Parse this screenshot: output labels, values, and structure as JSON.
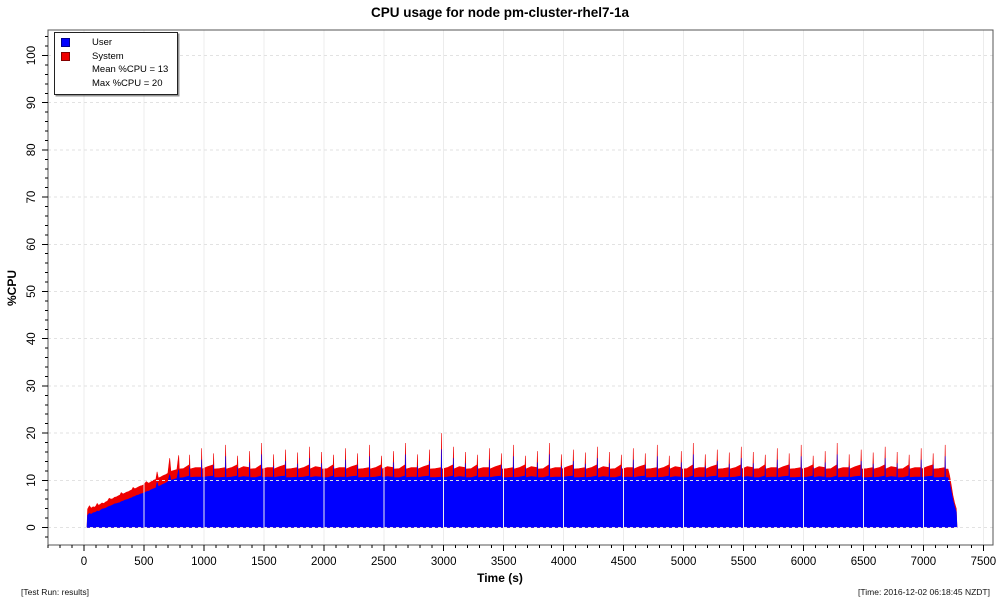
{
  "title": "CPU usage for node pm-cluster-rhel7-1a",
  "footer": {
    "left": "[Test Run: results]",
    "right": "[Time: 2016-12-02 06:18:45 NZDT]"
  },
  "chart_data": {
    "type": "area",
    "stacked": true,
    "title": "CPU usage for node pm-cluster-rhel7-1a",
    "xlabel": "Time (s)",
    "ylabel": "%CPU",
    "xlim": [
      -300,
      7580
    ],
    "ylim": [
      -3.7,
      105.4
    ],
    "x_major_ticks": [
      0,
      500,
      1000,
      1500,
      2000,
      2500,
      3000,
      3500,
      4000,
      4500,
      5000,
      5500,
      6000,
      6500,
      7000,
      7500
    ],
    "x_minor_step": 100,
    "y_major_ticks": [
      0,
      10,
      20,
      30,
      40,
      50,
      60,
      70,
      80,
      90,
      100
    ],
    "y_minor_step": 2,
    "grid": true,
    "colors": {
      "user": "#0000ff",
      "system": "#ee0000",
      "grid_h": "#e2e2e2",
      "grid_v": "#ececec",
      "box": "#555555"
    },
    "legend": {
      "items": [
        {
          "label": "User",
          "color": "#0000ff"
        },
        {
          "label": "System",
          "color": "#ee0000"
        }
      ],
      "stats": [
        {
          "label": "Mean %CPU = 13"
        },
        {
          "label": "Max %CPU = 20"
        }
      ]
    },
    "mean_pct_cpu": 13,
    "max_pct_cpu": 20,
    "points_format": [
      "time_s",
      "user_pct",
      "total_pct"
    ],
    "points": [
      [
        25,
        0,
        0
      ],
      [
        30,
        2.6,
        3.9
      ],
      [
        45,
        3.0,
        4.6
      ],
      [
        60,
        2.8,
        4.1
      ],
      [
        75,
        3.1,
        4.4
      ],
      [
        90,
        3.2,
        4.3
      ],
      [
        100,
        3.3,
        4.6
      ],
      [
        110,
        3.5,
        5.1
      ],
      [
        120,
        3.4,
        4.7
      ],
      [
        135,
        3.6,
        4.9
      ],
      [
        150,
        3.9,
        5.2
      ],
      [
        165,
        4.0,
        5.1
      ],
      [
        180,
        4.1,
        5.4
      ],
      [
        195,
        4.3,
        5.6
      ],
      [
        210,
        4.5,
        6.2
      ],
      [
        225,
        4.6,
        6.0
      ],
      [
        240,
        4.8,
        6.1
      ],
      [
        255,
        5.0,
        6.4
      ],
      [
        270,
        5.1,
        6.5
      ],
      [
        285,
        5.2,
        6.7
      ],
      [
        300,
        5.3,
        6.9
      ],
      [
        310,
        5.5,
        7.4
      ],
      [
        325,
        5.6,
        7.1
      ],
      [
        340,
        5.8,
        7.3
      ],
      [
        355,
        5.9,
        7.5
      ],
      [
        370,
        6.0,
        7.6
      ],
      [
        385,
        6.2,
        7.8
      ],
      [
        400,
        6.3,
        8.0
      ],
      [
        410,
        6.5,
        8.5
      ],
      [
        425,
        6.6,
        8.2
      ],
      [
        440,
        6.8,
        8.4
      ],
      [
        455,
        6.9,
        8.6
      ],
      [
        470,
        7.1,
        8.8
      ],
      [
        485,
        7.2,
        8.9
      ],
      [
        500,
        7.3,
        9.1
      ],
      [
        520,
        7.6,
        9.7
      ],
      [
        540,
        7.7,
        9.4
      ],
      [
        560,
        8.0,
        9.7
      ],
      [
        580,
        8.2,
        10.0
      ],
      [
        600,
        8.4,
        10.2
      ],
      [
        610,
        9.6,
        11.8
      ],
      [
        620,
        8.7,
        10.5
      ],
      [
        640,
        8.9,
        10.7
      ],
      [
        660,
        9.2,
        11.0
      ],
      [
        680,
        9.4,
        11.2
      ],
      [
        700,
        9.7,
        11.5
      ],
      [
        715,
        11.2,
        14.7
      ],
      [
        725,
        10.0,
        11.9
      ],
      [
        750,
        10.2,
        12.1
      ],
      [
        775,
        10.4,
        12.3
      ],
      [
        790,
        12.3,
        15.3
      ],
      [
        795,
        10.5,
        12.4
      ],
      [
        830,
        10.6,
        12.5
      ],
      [
        878,
        10.9,
        13.3
      ],
      [
        881,
        13.0,
        15.4
      ],
      [
        884,
        10.6,
        12.4
      ],
      [
        930,
        10.7,
        12.7
      ],
      [
        978,
        10.7,
        12.7
      ],
      [
        981,
        14.4,
        16.8
      ],
      [
        984,
        10.6,
        12.4
      ],
      [
        1030,
        10.8,
        12.9
      ],
      [
        1078,
        10.9,
        13.3
      ],
      [
        1081,
        13.3,
        15.7
      ],
      [
        1084,
        10.6,
        12.4
      ],
      [
        1130,
        10.6,
        12.5
      ],
      [
        1178,
        10.7,
        12.7
      ],
      [
        1181,
        15.1,
        17.5
      ],
      [
        1184,
        10.6,
        12.4
      ],
      [
        1230,
        10.7,
        12.7
      ],
      [
        1278,
        10.9,
        13.3
      ],
      [
        1281,
        12.8,
        15.2
      ],
      [
        1284,
        10.6,
        12.4
      ],
      [
        1330,
        10.8,
        12.9
      ],
      [
        1378,
        10.7,
        12.7
      ],
      [
        1381,
        13.8,
        16.2
      ],
      [
        1384,
        10.6,
        12.4
      ],
      [
        1430,
        10.6,
        12.5
      ],
      [
        1478,
        10.9,
        13.3
      ],
      [
        1481,
        15.5,
        17.9
      ],
      [
        1484,
        10.6,
        12.4
      ],
      [
        1530,
        10.7,
        12.7
      ],
      [
        1578,
        10.7,
        12.7
      ],
      [
        1581,
        13.1,
        15.5
      ],
      [
        1584,
        10.6,
        12.4
      ],
      [
        1630,
        10.8,
        12.9
      ],
      [
        1678,
        10.9,
        13.3
      ],
      [
        1681,
        14.1,
        16.5
      ],
      [
        1684,
        10.6,
        12.4
      ],
      [
        1730,
        10.6,
        12.5
      ],
      [
        1778,
        10.7,
        12.7
      ],
      [
        1781,
        13.5,
        15.9
      ],
      [
        1784,
        10.6,
        12.4
      ],
      [
        1830,
        10.7,
        12.7
      ],
      [
        1878,
        10.9,
        13.3
      ],
      [
        1881,
        14.7,
        17.1
      ],
      [
        1884,
        10.6,
        12.4
      ],
      [
        1930,
        10.8,
        12.9
      ],
      [
        1978,
        10.7,
        12.7
      ],
      [
        1981,
        13.6,
        16.0
      ],
      [
        1984,
        10.6,
        12.4
      ],
      [
        2030,
        10.6,
        12.5
      ],
      [
        2078,
        10.9,
        13.3
      ],
      [
        2081,
        13.0,
        15.4
      ],
      [
        2084,
        10.6,
        12.4
      ],
      [
        2130,
        10.7,
        12.7
      ],
      [
        2178,
        10.7,
        12.7
      ],
      [
        2181,
        14.4,
        16.8
      ],
      [
        2184,
        10.6,
        12.4
      ],
      [
        2230,
        10.8,
        12.9
      ],
      [
        2278,
        10.9,
        13.3
      ],
      [
        2281,
        13.3,
        15.7
      ],
      [
        2284,
        10.6,
        12.4
      ],
      [
        2330,
        10.6,
        12.5
      ],
      [
        2378,
        10.7,
        12.7
      ],
      [
        2381,
        15.1,
        17.5
      ],
      [
        2384,
        10.6,
        12.4
      ],
      [
        2430,
        10.7,
        12.7
      ],
      [
        2478,
        10.9,
        13.3
      ],
      [
        2481,
        12.8,
        15.2
      ],
      [
        2484,
        10.6,
        12.4
      ],
      [
        2530,
        10.8,
        12.9
      ],
      [
        2578,
        10.7,
        12.7
      ],
      [
        2581,
        13.8,
        16.2
      ],
      [
        2584,
        10.6,
        12.4
      ],
      [
        2630,
        10.6,
        12.5
      ],
      [
        2678,
        10.9,
        13.3
      ],
      [
        2681,
        15.5,
        17.9
      ],
      [
        2684,
        10.6,
        12.4
      ],
      [
        2730,
        10.7,
        12.7
      ],
      [
        2778,
        10.7,
        12.7
      ],
      [
        2781,
        13.1,
        15.5
      ],
      [
        2784,
        10.6,
        12.4
      ],
      [
        2830,
        10.8,
        12.9
      ],
      [
        2878,
        10.9,
        13.3
      ],
      [
        2881,
        14.1,
        16.5
      ],
      [
        2884,
        10.6,
        12.4
      ],
      [
        2930,
        10.6,
        12.5
      ],
      [
        2978,
        10.7,
        12.7
      ],
      [
        2981,
        16.6,
        20.0
      ],
      [
        2984,
        10.6,
        12.4
      ],
      [
        3030,
        10.7,
        12.7
      ],
      [
        3078,
        10.9,
        13.3
      ],
      [
        3081,
        14.7,
        17.1
      ],
      [
        3084,
        10.6,
        12.4
      ],
      [
        3130,
        10.8,
        12.9
      ],
      [
        3178,
        10.7,
        12.7
      ],
      [
        3181,
        13.6,
        16.0
      ],
      [
        3184,
        10.6,
        12.4
      ],
      [
        3230,
        10.6,
        12.5
      ],
      [
        3278,
        10.9,
        13.3
      ],
      [
        3281,
        13.0,
        15.4
      ],
      [
        3284,
        10.6,
        12.4
      ],
      [
        3330,
        10.7,
        12.7
      ],
      [
        3378,
        10.7,
        12.7
      ],
      [
        3381,
        14.4,
        16.8
      ],
      [
        3384,
        10.6,
        12.4
      ],
      [
        3430,
        10.8,
        12.9
      ],
      [
        3478,
        10.9,
        13.3
      ],
      [
        3481,
        13.3,
        15.7
      ],
      [
        3484,
        10.6,
        12.4
      ],
      [
        3530,
        10.6,
        12.5
      ],
      [
        3578,
        10.7,
        12.7
      ],
      [
        3581,
        15.1,
        17.5
      ],
      [
        3584,
        10.6,
        12.4
      ],
      [
        3630,
        10.7,
        12.7
      ],
      [
        3678,
        10.9,
        13.3
      ],
      [
        3681,
        12.8,
        15.2
      ],
      [
        3684,
        10.6,
        12.4
      ],
      [
        3730,
        10.8,
        12.9
      ],
      [
        3778,
        10.7,
        12.7
      ],
      [
        3781,
        13.8,
        16.2
      ],
      [
        3784,
        10.6,
        12.4
      ],
      [
        3830,
        10.6,
        12.5
      ],
      [
        3878,
        10.9,
        13.3
      ],
      [
        3881,
        15.5,
        17.9
      ],
      [
        3884,
        10.6,
        12.4
      ],
      [
        3930,
        10.7,
        12.7
      ],
      [
        3978,
        10.7,
        12.7
      ],
      [
        3981,
        13.1,
        15.5
      ],
      [
        3984,
        10.6,
        12.4
      ],
      [
        4030,
        10.8,
        12.9
      ],
      [
        4078,
        10.9,
        13.3
      ],
      [
        4081,
        14.1,
        16.5
      ],
      [
        4084,
        10.6,
        12.4
      ],
      [
        4130,
        10.6,
        12.5
      ],
      [
        4178,
        10.7,
        12.7
      ],
      [
        4181,
        13.5,
        15.9
      ],
      [
        4184,
        10.6,
        12.4
      ],
      [
        4230,
        10.7,
        12.7
      ],
      [
        4278,
        10.9,
        13.3
      ],
      [
        4281,
        14.7,
        17.1
      ],
      [
        4284,
        10.6,
        12.4
      ],
      [
        4330,
        10.8,
        12.9
      ],
      [
        4378,
        10.7,
        12.7
      ],
      [
        4381,
        13.6,
        16.0
      ],
      [
        4384,
        10.6,
        12.4
      ],
      [
        4430,
        10.6,
        12.5
      ],
      [
        4478,
        10.9,
        13.3
      ],
      [
        4481,
        13.0,
        15.4
      ],
      [
        4484,
        10.6,
        12.4
      ],
      [
        4530,
        10.7,
        12.7
      ],
      [
        4578,
        10.7,
        12.7
      ],
      [
        4581,
        14.4,
        16.8
      ],
      [
        4584,
        10.6,
        12.4
      ],
      [
        4630,
        10.8,
        12.9
      ],
      [
        4678,
        10.9,
        13.3
      ],
      [
        4681,
        13.3,
        15.7
      ],
      [
        4684,
        10.6,
        12.4
      ],
      [
        4730,
        10.6,
        12.5
      ],
      [
        4778,
        10.7,
        12.7
      ],
      [
        4781,
        15.1,
        17.5
      ],
      [
        4784,
        10.6,
        12.4
      ],
      [
        4830,
        10.7,
        12.7
      ],
      [
        4878,
        10.9,
        13.3
      ],
      [
        4881,
        12.8,
        15.2
      ],
      [
        4884,
        10.6,
        12.4
      ],
      [
        4930,
        10.8,
        12.9
      ],
      [
        4978,
        10.7,
        12.7
      ],
      [
        4981,
        13.8,
        16.2
      ],
      [
        4984,
        10.6,
        12.4
      ],
      [
        5030,
        10.6,
        12.5
      ],
      [
        5078,
        10.9,
        13.3
      ],
      [
        5081,
        15.5,
        17.9
      ],
      [
        5084,
        10.6,
        12.4
      ],
      [
        5130,
        10.7,
        12.7
      ],
      [
        5178,
        10.7,
        12.7
      ],
      [
        5181,
        13.1,
        15.5
      ],
      [
        5184,
        10.6,
        12.4
      ],
      [
        5230,
        10.8,
        12.9
      ],
      [
        5278,
        10.9,
        13.3
      ],
      [
        5281,
        14.1,
        16.5
      ],
      [
        5284,
        10.6,
        12.4
      ],
      [
        5330,
        10.6,
        12.5
      ],
      [
        5378,
        10.7,
        12.7
      ],
      [
        5381,
        13.5,
        15.9
      ],
      [
        5384,
        10.6,
        12.4
      ],
      [
        5430,
        10.7,
        12.7
      ],
      [
        5478,
        10.9,
        13.3
      ],
      [
        5481,
        14.7,
        17.1
      ],
      [
        5484,
        10.6,
        12.4
      ],
      [
        5530,
        10.8,
        12.9
      ],
      [
        5578,
        10.7,
        12.7
      ],
      [
        5581,
        13.6,
        16.0
      ],
      [
        5584,
        10.6,
        12.4
      ],
      [
        5630,
        10.6,
        12.5
      ],
      [
        5678,
        10.9,
        13.3
      ],
      [
        5681,
        13.0,
        15.4
      ],
      [
        5684,
        10.6,
        12.4
      ],
      [
        5730,
        10.7,
        12.7
      ],
      [
        5778,
        10.7,
        12.7
      ],
      [
        5781,
        14.4,
        16.8
      ],
      [
        5784,
        10.6,
        12.4
      ],
      [
        5830,
        10.8,
        12.9
      ],
      [
        5878,
        10.9,
        13.3
      ],
      [
        5881,
        13.3,
        15.7
      ],
      [
        5884,
        10.6,
        12.4
      ],
      [
        5930,
        10.6,
        12.5
      ],
      [
        5978,
        10.7,
        12.7
      ],
      [
        5981,
        15.1,
        17.5
      ],
      [
        5984,
        10.6,
        12.4
      ],
      [
        6030,
        10.7,
        12.7
      ],
      [
        6078,
        10.9,
        13.3
      ],
      [
        6081,
        12.8,
        15.2
      ],
      [
        6084,
        10.6,
        12.4
      ],
      [
        6130,
        10.8,
        12.9
      ],
      [
        6178,
        10.7,
        12.7
      ],
      [
        6181,
        13.8,
        16.2
      ],
      [
        6184,
        10.6,
        12.4
      ],
      [
        6230,
        10.6,
        12.5
      ],
      [
        6278,
        10.9,
        13.3
      ],
      [
        6281,
        15.5,
        17.9
      ],
      [
        6284,
        10.6,
        12.4
      ],
      [
        6330,
        10.7,
        12.7
      ],
      [
        6378,
        10.7,
        12.7
      ],
      [
        6381,
        13.1,
        15.5
      ],
      [
        6384,
        10.6,
        12.4
      ],
      [
        6430,
        10.8,
        12.9
      ],
      [
        6478,
        10.9,
        13.3
      ],
      [
        6481,
        14.1,
        16.5
      ],
      [
        6484,
        10.6,
        12.4
      ],
      [
        6530,
        10.6,
        12.5
      ],
      [
        6578,
        10.7,
        12.7
      ],
      [
        6581,
        13.5,
        15.9
      ],
      [
        6584,
        10.6,
        12.4
      ],
      [
        6630,
        10.7,
        12.7
      ],
      [
        6678,
        10.9,
        13.3
      ],
      [
        6681,
        14.7,
        17.1
      ],
      [
        6684,
        10.6,
        12.4
      ],
      [
        6730,
        10.8,
        12.9
      ],
      [
        6778,
        10.7,
        12.7
      ],
      [
        6781,
        13.6,
        16.0
      ],
      [
        6784,
        10.6,
        12.4
      ],
      [
        6830,
        10.6,
        12.5
      ],
      [
        6878,
        10.9,
        13.3
      ],
      [
        6881,
        13.0,
        15.4
      ],
      [
        6884,
        10.6,
        12.4
      ],
      [
        6930,
        10.7,
        12.7
      ],
      [
        6978,
        10.7,
        12.7
      ],
      [
        6981,
        14.4,
        16.8
      ],
      [
        6984,
        10.6,
        12.4
      ],
      [
        7030,
        10.8,
        12.9
      ],
      [
        7078,
        10.9,
        13.3
      ],
      [
        7081,
        13.3,
        15.7
      ],
      [
        7084,
        10.6,
        12.4
      ],
      [
        7130,
        10.6,
        12.5
      ],
      [
        7178,
        10.7,
        12.7
      ],
      [
        7181,
        15.1,
        17.5
      ],
      [
        7184,
        10.6,
        12.4
      ],
      [
        7205,
        10.6,
        12.4
      ],
      [
        7218,
        9.4,
        11.0
      ],
      [
        7232,
        7.6,
        8.9
      ],
      [
        7246,
        5.8,
        6.8
      ],
      [
        7260,
        4.4,
        5.2
      ],
      [
        7274,
        3.3,
        4.0
      ],
      [
        7280,
        0,
        0
      ]
    ]
  }
}
